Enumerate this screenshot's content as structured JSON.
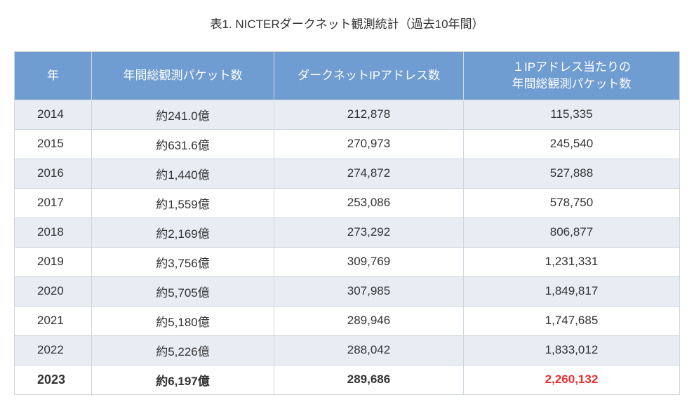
{
  "title": "表1. NICTERダークネット観測統計（過去10年間）",
  "table": {
    "headers": [
      "年",
      "年間総観測パケット数",
      "ダークネットIPアドレス数",
      "１IPアドレス当たりの\n年間総観測パケット数"
    ],
    "rows": [
      {
        "year": "2014",
        "packets": "約241.0億",
        "ips": "212,878",
        "perIp": "115,335",
        "stripe": "odd",
        "last": false
      },
      {
        "year": "2015",
        "packets": "約631.6億",
        "ips": "270,973",
        "perIp": "245,540",
        "stripe": "even",
        "last": false
      },
      {
        "year": "2016",
        "packets": "約1,440億",
        "ips": "274,872",
        "perIp": "527,888",
        "stripe": "odd",
        "last": false
      },
      {
        "year": "2017",
        "packets": "約1,559億",
        "ips": "253,086",
        "perIp": "578,750",
        "stripe": "even",
        "last": false
      },
      {
        "year": "2018",
        "packets": "約2,169億",
        "ips": "273,292",
        "perIp": "806,877",
        "stripe": "odd",
        "last": false
      },
      {
        "year": "2019",
        "packets": "約3,756億",
        "ips": "309,769",
        "perIp": "1,231,331",
        "stripe": "even",
        "last": false
      },
      {
        "year": "2020",
        "packets": "約5,705億",
        "ips": "307,985",
        "perIp": "1,849,817",
        "stripe": "odd",
        "last": false
      },
      {
        "year": "2021",
        "packets": "約5,180億",
        "ips": "289,946",
        "perIp": "1,747,685",
        "stripe": "even",
        "last": false
      },
      {
        "year": "2022",
        "packets": "約5,226億",
        "ips": "288,042",
        "perIp": "1,833,012",
        "stripe": "odd",
        "last": false
      },
      {
        "year": "2023",
        "packets": "約6,197億",
        "ips": "289,686",
        "perIp": "2,260,132",
        "stripe": "even",
        "last": true
      }
    ]
  },
  "styling": {
    "header_bg": "#6f9cd1",
    "header_text": "#ffffff",
    "odd_row_bg": "#e8edf4",
    "even_row_bg": "#ffffff",
    "border_color": "#d0d6dd",
    "text_color": "#333333",
    "highlight_color": "#e63030",
    "title_fontsize": 17,
    "cell_fontsize": 17
  }
}
